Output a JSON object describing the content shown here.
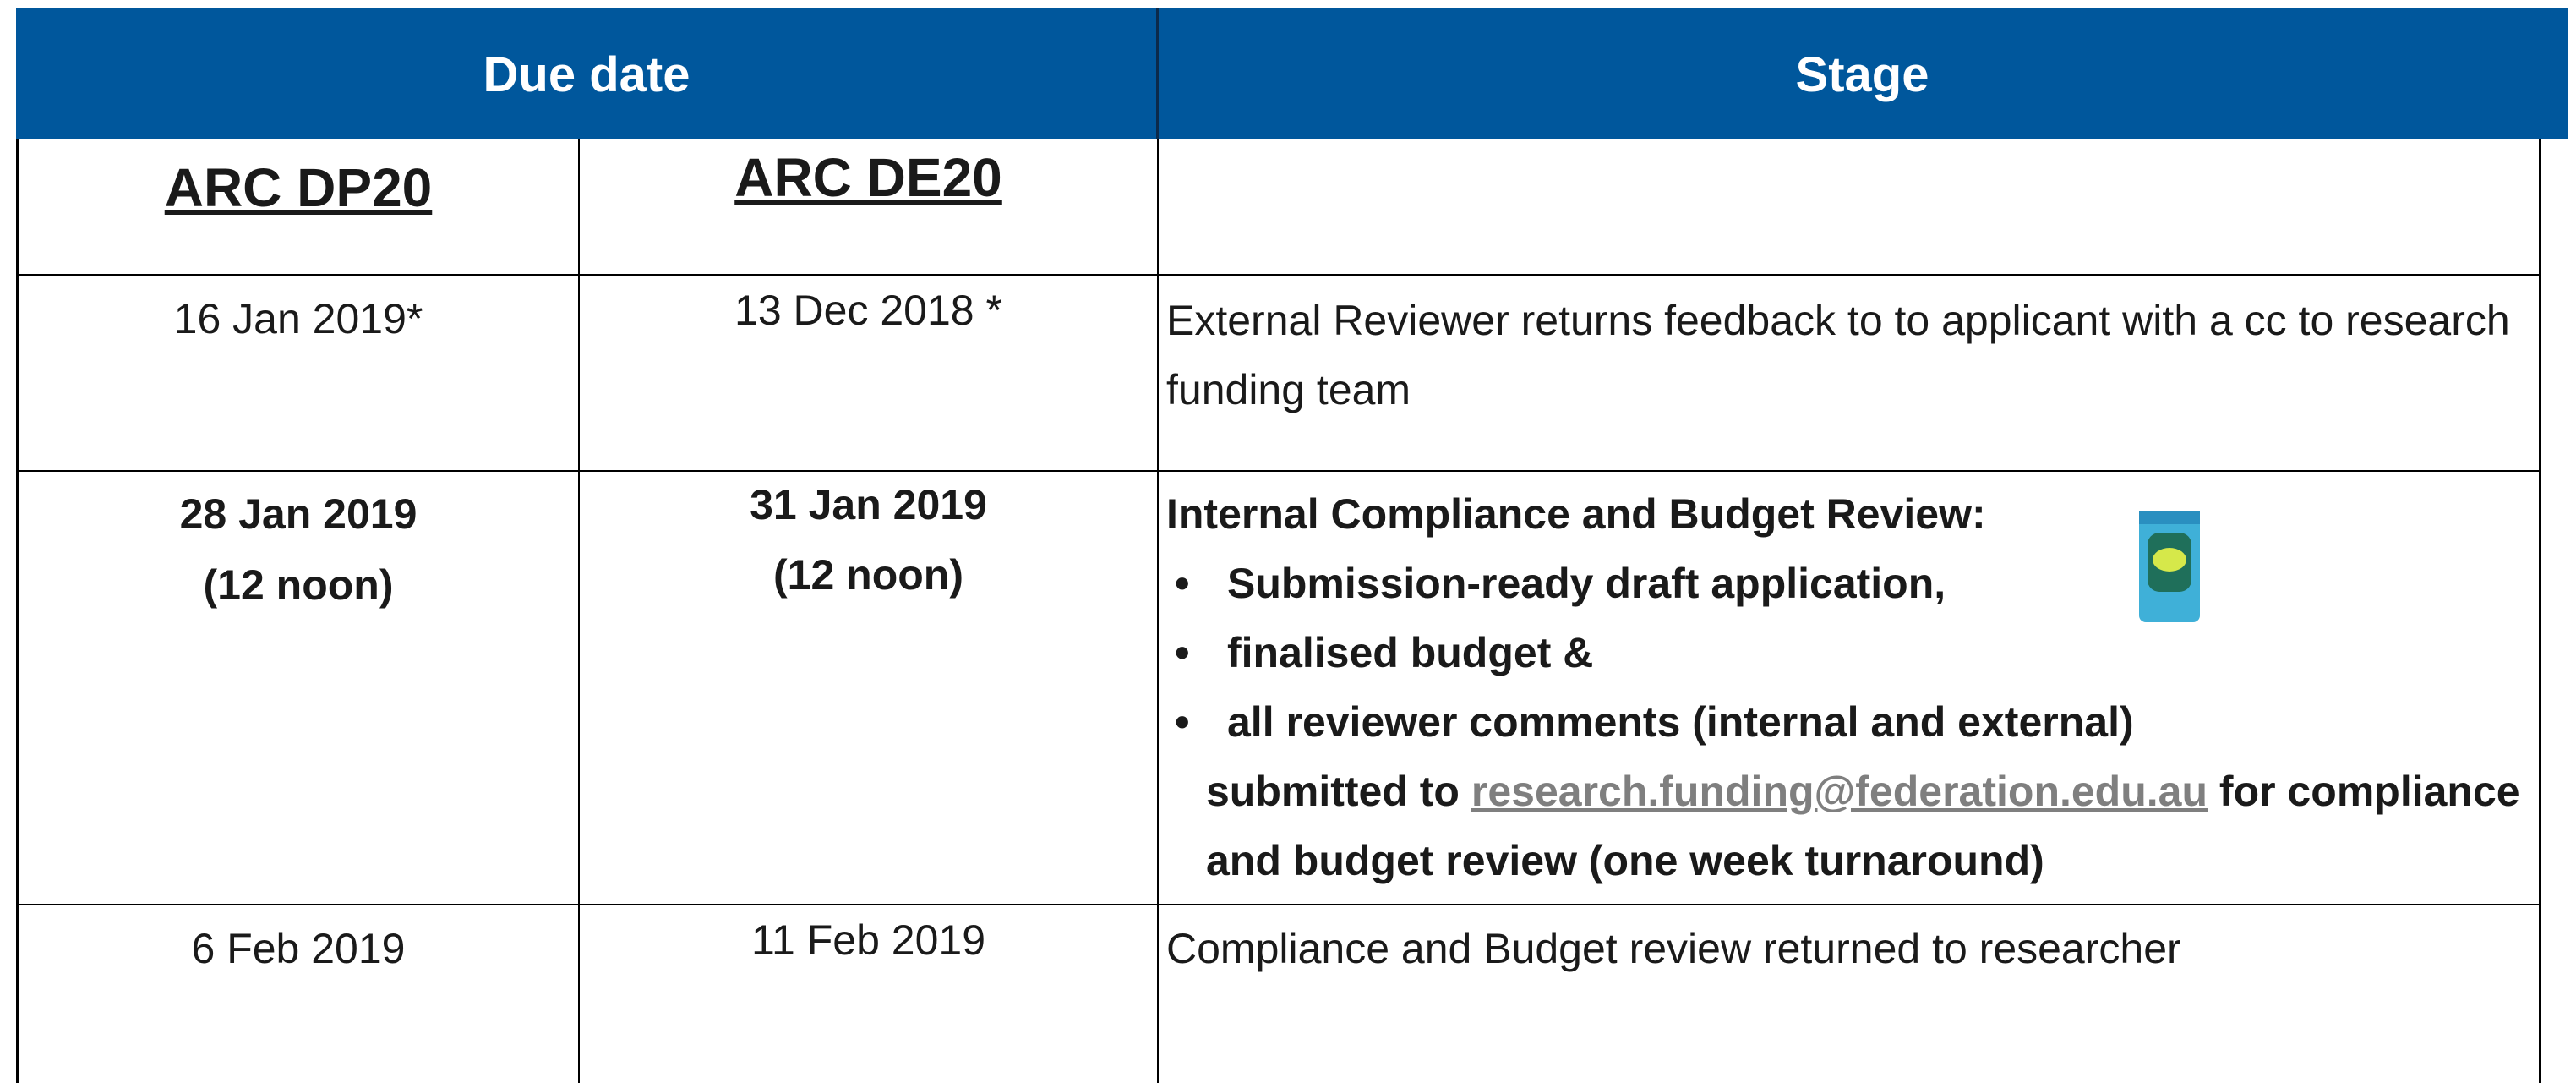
{
  "table": {
    "header": [
      "Due date",
      "Stage"
    ],
    "subheader": [
      "ARC DP20",
      "ARC DE20"
    ],
    "rows": [
      {
        "dp": [
          "16 Jan 2019*"
        ],
        "de": [
          "13 Dec 2018 *"
        ],
        "stage": "External Reviewer returns feedback to to applicant with a cc to research funding team"
      },
      {
        "dp": [
          "28 Jan 2019",
          "(12 noon)"
        ],
        "de": [
          "31 Jan 2019",
          "(12 noon)"
        ],
        "stage_title": "Internal Compliance and Budget Review:",
        "bullets": [
          "Submission-ready draft application,",
          "finalised budget &",
          "all reviewer comments (internal and external)"
        ],
        "submit_before": "submitted to",
        "link": "research.funding@federation.edu.au",
        "submit_after": "for compliance and budget review (one week turnaround)"
      },
      {
        "dp": [
          "6 Feb 2019"
        ],
        "de": [
          "11 Feb 2019"
        ],
        "stage": "Compliance and Budget review returned to researcher"
      }
    ]
  }
}
